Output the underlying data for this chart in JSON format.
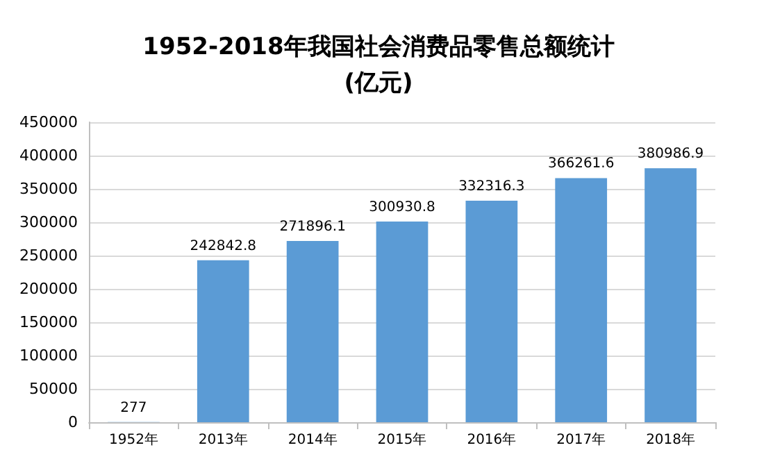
{
  "chart_data": {
    "type": "bar",
    "title": "1952-2018年我国社会消费品零售总额统计\n(亿元)",
    "categories": [
      "1952年",
      "2013年",
      "2014年",
      "2015年",
      "2016年",
      "2017年",
      "2018年"
    ],
    "values": [
      277,
      242842.8,
      271896.1,
      300930.8,
      332316.3,
      366261.6,
      380986.9
    ],
    "color": "#5b9bd5",
    "ylim": [
      0,
      450000
    ],
    "yticks": [
      0,
      50000,
      100000,
      150000,
      200000,
      250000,
      300000,
      350000,
      400000,
      450000
    ],
    "grid": "y",
    "data_labels": true
  }
}
